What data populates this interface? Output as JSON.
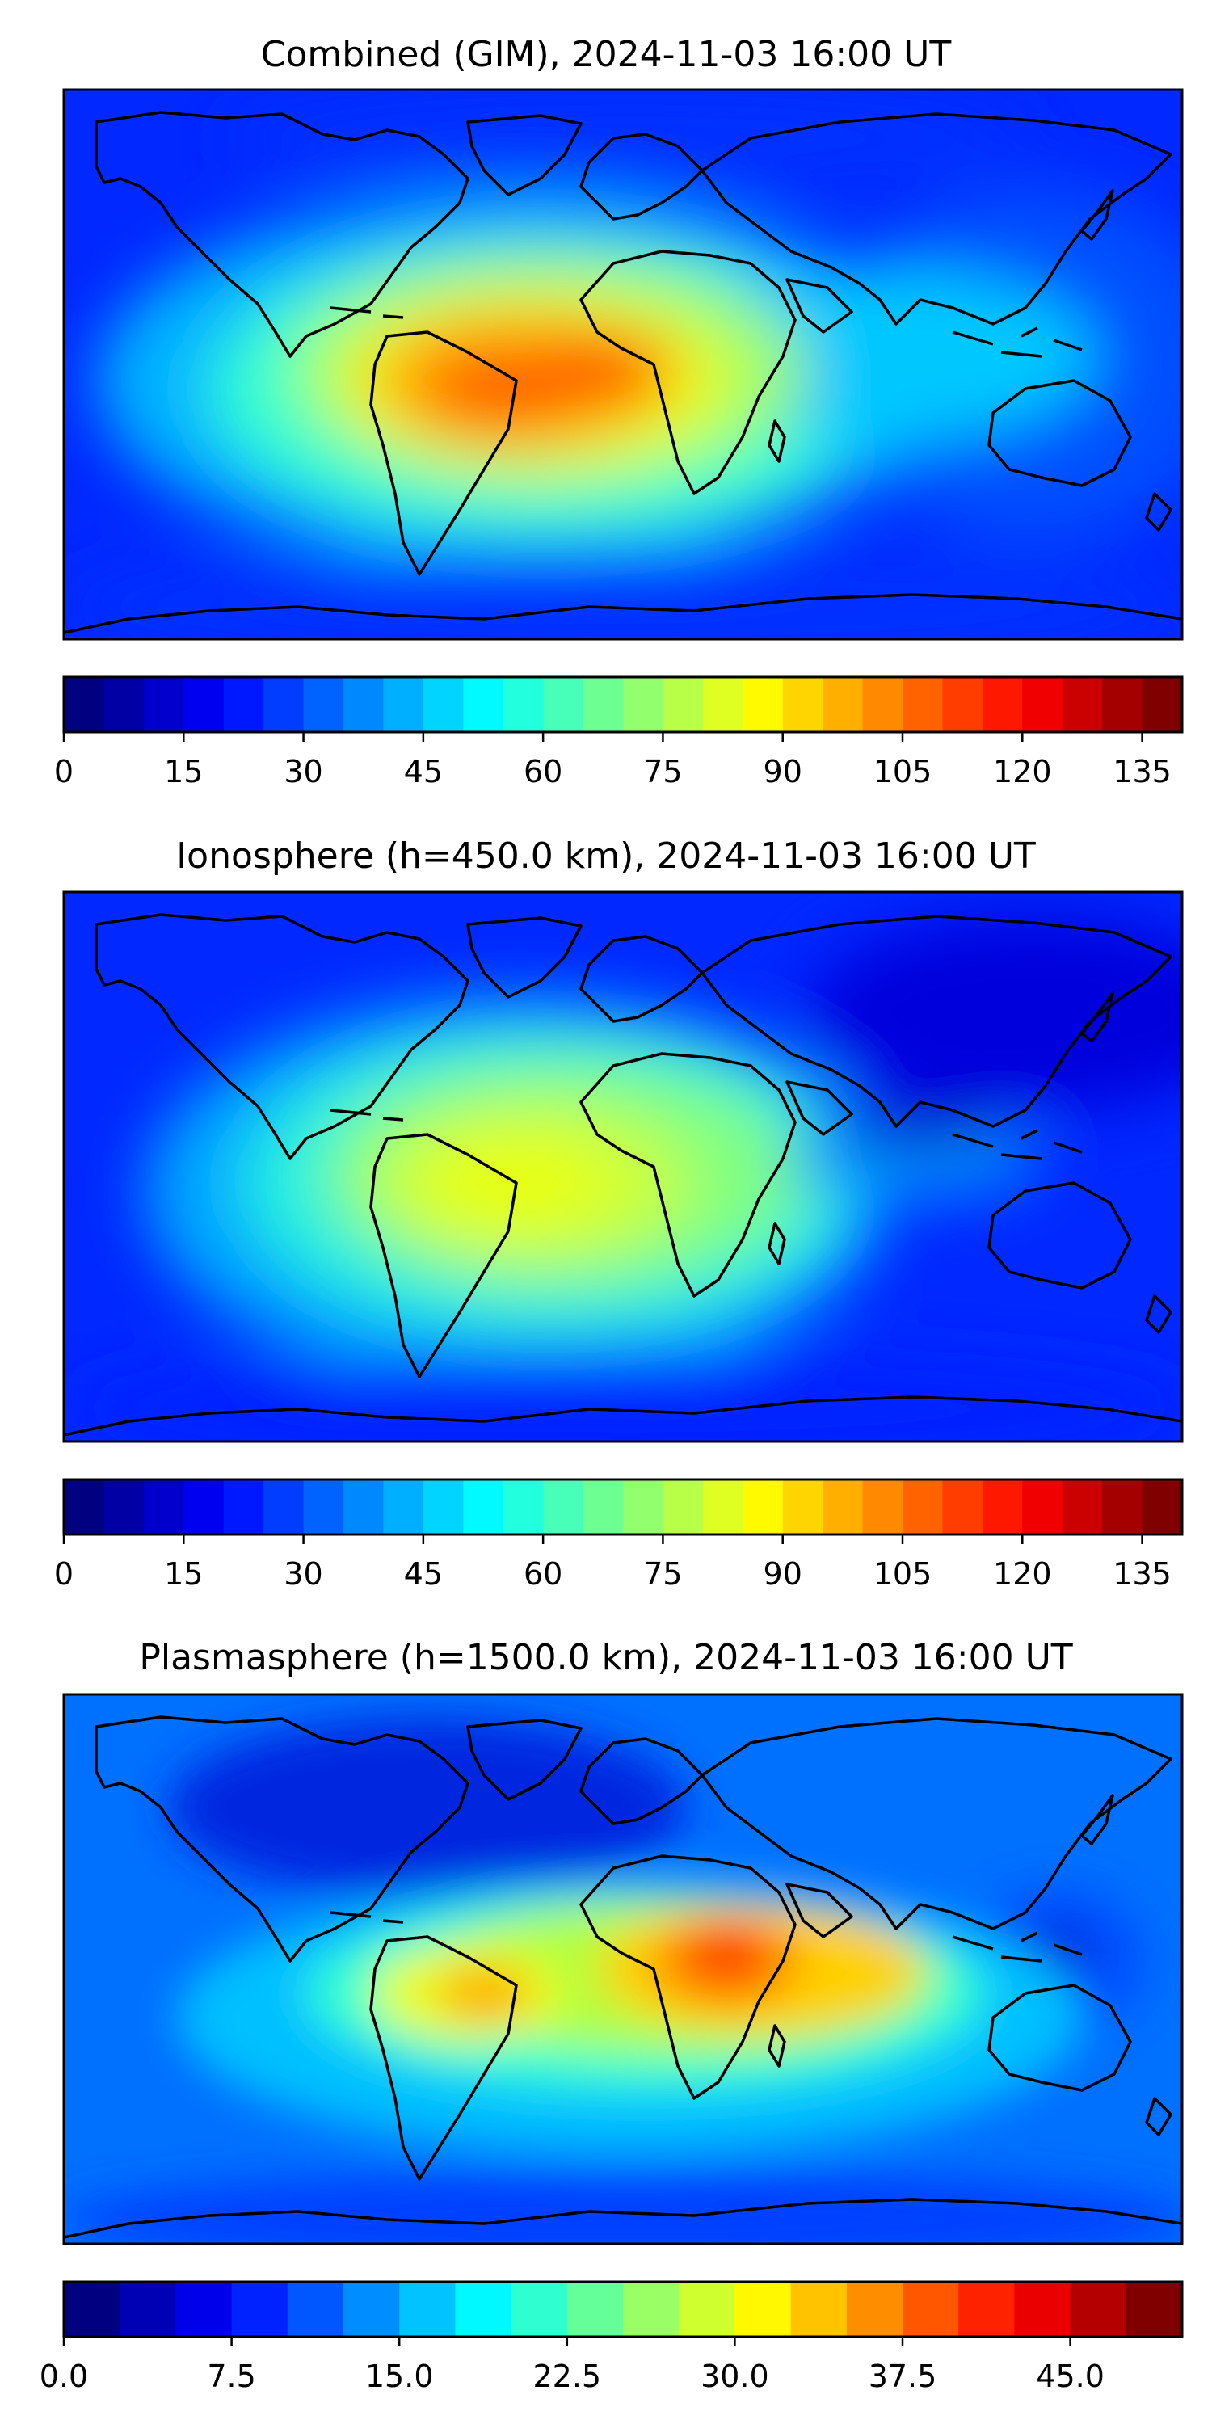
{
  "panels": [
    {
      "title": "Combined (GIM), 2024-11-03 16:00 UT",
      "colorbar": {
        "ticks": [
          "0",
          "15",
          "30",
          "45",
          "60",
          "75",
          "90",
          "105",
          "120",
          "135"
        ],
        "levels": 28,
        "min": 0,
        "max": 140
      }
    },
    {
      "title": "Ionosphere  (h=450.0 km), 2024-11-03 16:00 UT",
      "colorbar": {
        "ticks": [
          "0",
          "15",
          "30",
          "45",
          "60",
          "75",
          "90",
          "105",
          "120",
          "135"
        ],
        "levels": 28,
        "min": 0,
        "max": 140
      }
    },
    {
      "title": "Plasmasphere (h=1500.0 km), 2024-11-03 16:00 UT",
      "colorbar": {
        "ticks": [
          "0.0",
          "7.5",
          "15.0",
          "22.5",
          "30.0",
          "37.5",
          "45.0"
        ],
        "levels": 20,
        "min": 0,
        "max": 50
      }
    }
  ],
  "colors": {
    "colormap": "jet",
    "coastline": "#000000",
    "frame": "#000000"
  }
}
